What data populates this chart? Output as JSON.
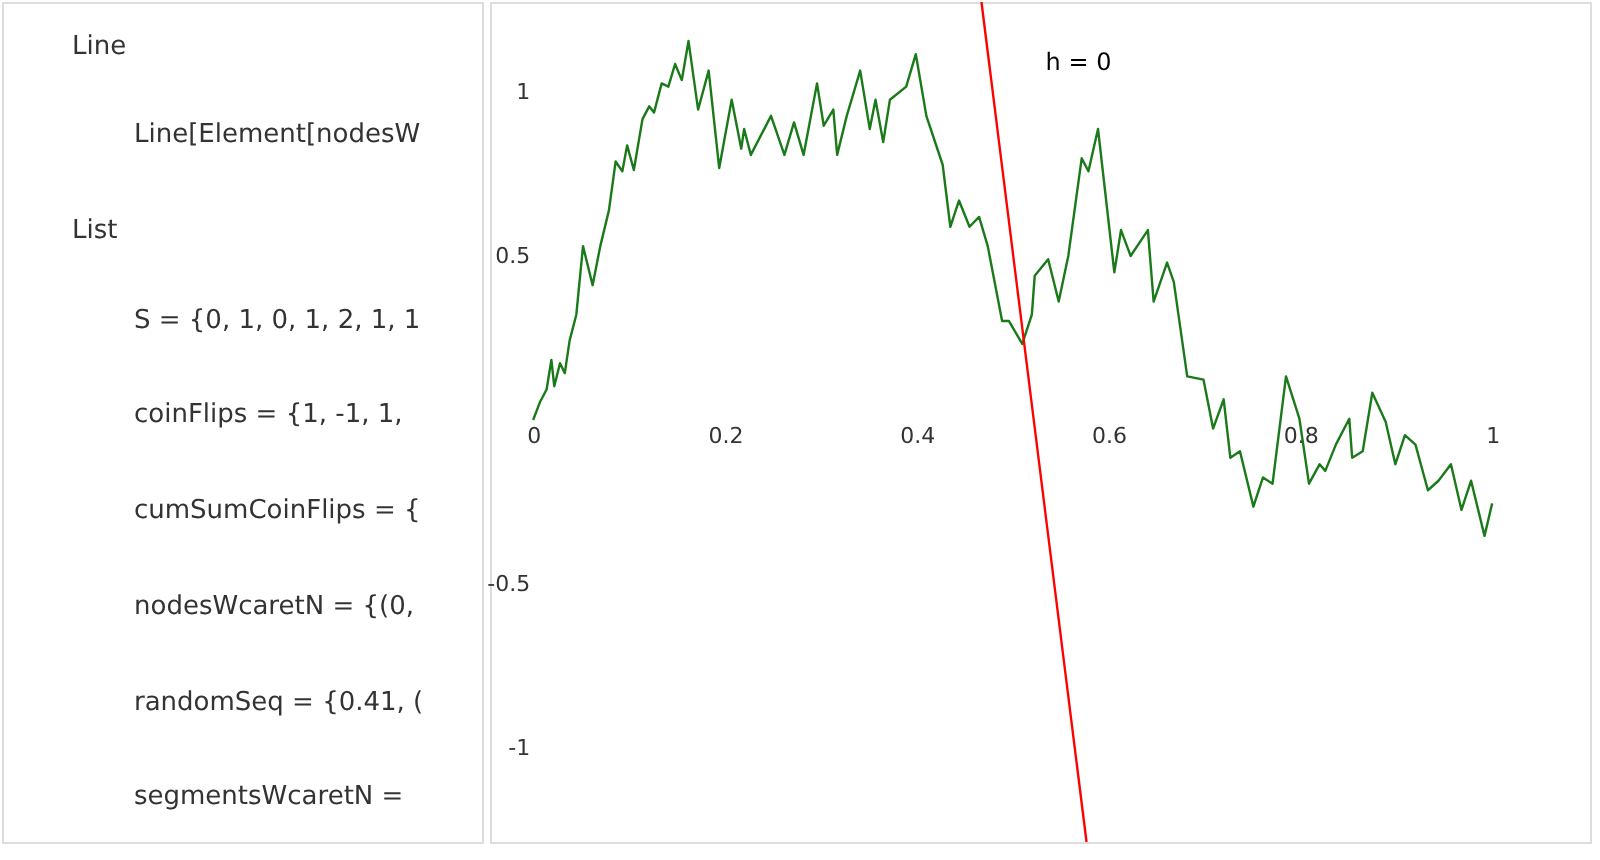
{
  "chart_data": {
    "type": "line",
    "xlim": [
      -0.045,
      1.102
    ],
    "ylim": [
      -1.286,
      1.274
    ],
    "xticks": [
      0,
      0.2,
      0.4,
      0.6,
      0.8,
      1
    ],
    "yticks": [
      -1,
      -0.5,
      0.5,
      1
    ],
    "grid": false,
    "marker": "none",
    "line_style": "solid",
    "annotations": [
      "Line",
      "Line[Element[nodesW",
      "List",
      "S = {0, 1, 0, 1, 2, 1, 1",
      "coinFlips = {1, -1, 1,",
      "cumSumCoinFlips = {",
      "nodesWcaretN = {(0,",
      "randomSeq = {0.41, (",
      "segmentsWcaretN = ",
      "h = 0"
    ],
    "series": [
      {
        "color": "#1a7a1a",
        "x": [
          0,
          0.007,
          0.014,
          0.019,
          0.022,
          0.028,
          0.033,
          0.038,
          0.045,
          0.052,
          0.062,
          0.07,
          0.079,
          0.086,
          0.093,
          0.098,
          0.105,
          0.114,
          0.121,
          0.126,
          0.134,
          0.141,
          0.148,
          0.155,
          0.162,
          0.172,
          0.183,
          0.194,
          0.207,
          0.217,
          0.22,
          0.227,
          0.248,
          0.262,
          0.272,
          0.282,
          0.296,
          0.303,
          0.313,
          0.317,
          0.327,
          0.341,
          0.351,
          0.357,
          0.365,
          0.372,
          0.389,
          0.399,
          0.41,
          0.427,
          0.435,
          0.444,
          0.455,
          0.465,
          0.474,
          0.489,
          0.496,
          0.51,
          0.52,
          0.523,
          0.537,
          0.548,
          0.558,
          0.572,
          0.579,
          0.589,
          0.606,
          0.613,
          0.623,
          0.641,
          0.647,
          0.661,
          0.668,
          0.682,
          0.699,
          0.709,
          0.72,
          0.727,
          0.737,
          0.751,
          0.761,
          0.771,
          0.785,
          0.799,
          0.809,
          0.82,
          0.826,
          0.837,
          0.851,
          0.854,
          0.865,
          0.875,
          0.889,
          0.899,
          0.909,
          0.92,
          0.933,
          0.944,
          0.957,
          0.968,
          0.978,
          0.992,
          1.0
        ],
        "values": [
          0,
          0.054,
          0.093,
          0.183,
          0.103,
          0.173,
          0.143,
          0.242,
          0.321,
          0.53,
          0.411,
          0.53,
          0.639,
          0.788,
          0.758,
          0.837,
          0.762,
          0.917,
          0.956,
          0.937,
          1.026,
          1.016,
          1.085,
          1.036,
          1.155,
          0.946,
          1.065,
          0.768,
          0.976,
          0.827,
          0.887,
          0.808,
          0.927,
          0.808,
          0.907,
          0.808,
          1.026,
          0.897,
          0.946,
          0.808,
          0.927,
          1.065,
          0.887,
          0.976,
          0.847,
          0.976,
          1.016,
          1.115,
          0.927,
          0.778,
          0.589,
          0.669,
          0.589,
          0.619,
          0.53,
          0.302,
          0.302,
          0.232,
          0.321,
          0.44,
          0.49,
          0.361,
          0.5,
          0.798,
          0.758,
          0.887,
          0.45,
          0.579,
          0.5,
          0.579,
          0.361,
          0.48,
          0.421,
          0.133,
          0.123,
          -0.026,
          0.063,
          -0.115,
          -0.095,
          -0.264,
          -0.175,
          -0.194,
          0.133,
          0.004,
          -0.194,
          -0.135,
          -0.155,
          -0.075,
          0.004,
          -0.115,
          -0.095,
          0.083,
          -0.006,
          -0.135,
          -0.046,
          -0.075,
          -0.214,
          -0.185,
          -0.135,
          -0.274,
          -0.185,
          -0.353,
          -0.254
        ]
      },
      {
        "color": "#ff0000",
        "x": [
          0.4675,
          0.577
        ],
        "values": [
          1.274,
          -1.286
        ]
      }
    ]
  }
}
